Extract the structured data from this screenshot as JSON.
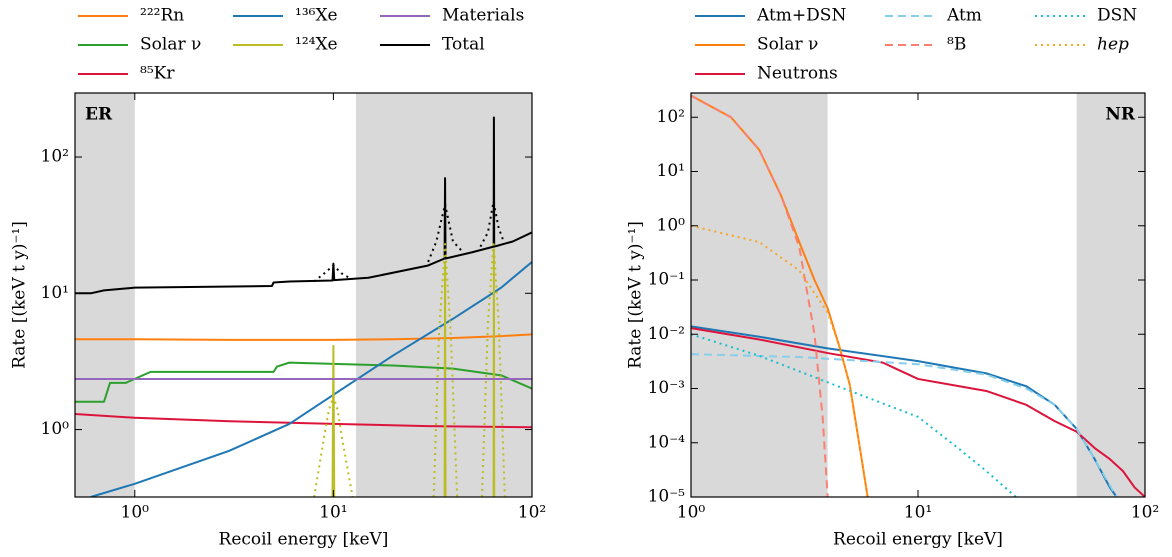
{
  "chart_data": [
    {
      "type": "line",
      "xscale": "log",
      "yscale": "log",
      "xlabel": "Recoil energy [keV]",
      "ylabel": "Rate [(keV t y)⁻¹]",
      "panel_label": "ER",
      "panel_label_corner": "upper left",
      "xlim": [
        0.5,
        100
      ],
      "ylim": [
        0.32,
        295
      ],
      "xticks": [
        {
          "value": 1,
          "label": "10⁰"
        },
        {
          "value": 10,
          "label": "10¹"
        },
        {
          "value": 100,
          "label": "10²"
        }
      ],
      "yticks": [
        {
          "value": 1,
          "label": "10⁰"
        },
        {
          "value": 10,
          "label": "10¹"
        },
        {
          "value": 100,
          "label": "10²"
        }
      ],
      "shaded_regions": [
        [
          0.5,
          1
        ],
        [
          13,
          100
        ]
      ],
      "shade_color": "#d9d9d9",
      "series": [
        {
          "name": "²²²Rn",
          "color": "#ff7f0e",
          "style": "solid",
          "x": [
            0.5,
            1,
            3,
            10,
            20,
            40,
            70,
            100
          ],
          "values": [
            4.6,
            4.6,
            4.55,
            4.55,
            4.6,
            4.7,
            4.85,
            5.0
          ]
        },
        {
          "name": "Solar ν",
          "color": "#2ca02c",
          "style": "solid",
          "x": [
            0.5,
            0.7,
            0.75,
            0.9,
            1.2,
            5,
            5.2,
            6,
            20,
            40,
            70,
            100
          ],
          "values": [
            1.6,
            1.6,
            2.2,
            2.2,
            2.65,
            2.65,
            2.9,
            3.1,
            2.95,
            2.8,
            2.5,
            2.0
          ]
        },
        {
          "name": "⁸⁵Kr",
          "color": "#dc143c",
          "style": "solid",
          "x": [
            0.5,
            1,
            3,
            10,
            30,
            100
          ],
          "values": [
            1.3,
            1.22,
            1.15,
            1.1,
            1.06,
            1.04
          ]
        },
        {
          "name": "¹³⁶Xe",
          "color": "#1f77b4",
          "style": "solid",
          "x": [
            0.6,
            1,
            3,
            6,
            10,
            20,
            40,
            70,
            100
          ],
          "values": [
            0.32,
            0.4,
            0.7,
            1.1,
            1.8,
            3.5,
            6.5,
            11,
            17
          ]
        },
        {
          "name": "¹²⁴Xe",
          "color": "#bcbd22",
          "style": "solid",
          "x": [
            9.9,
            10,
            10.1,
            20,
            36.3,
            36.5,
            36.7,
            50,
            64.1,
            64.3,
            64.5
          ],
          "values": [
            0.32,
            4.1,
            0.32,
            null,
            0.32,
            17,
            0.32,
            null,
            0.32,
            21,
            0.32
          ]
        },
        {
          "name": "Materials",
          "color": "#9467bd",
          "style": "solid",
          "x": [
            0.5,
            100
          ],
          "values": [
            2.35,
            2.35
          ]
        },
        {
          "name": "Total",
          "color": "#000000",
          "style": "solid",
          "x": [
            0.5,
            0.6,
            0.7,
            1,
            4.9,
            5,
            6,
            9.9,
            10,
            10.1,
            15,
            30,
            36.3,
            36.5,
            36.7,
            50,
            64.1,
            64.3,
            64.5,
            80,
            100
          ],
          "values": [
            10,
            10,
            10.5,
            11,
            11.3,
            12,
            12.2,
            12.4,
            16.5,
            12.5,
            13,
            16,
            18,
            70,
            18,
            20,
            22,
            195,
            22,
            24,
            28
          ]
        },
        {
          "color": "#bcbd22",
          "style": "dotted",
          "x": [
            8,
            9,
            9.5,
            10,
            10.5,
            11,
            12.5,
            20,
            32,
            34,
            36.5,
            39,
            42,
            50,
            56,
            60,
            64,
            68,
            73
          ],
          "values": [
            0.32,
            0.9,
            1.4,
            1.75,
            1.4,
            0.9,
            0.32,
            null,
            0.32,
            5,
            23,
            5,
            0.32,
            null,
            0.32,
            6,
            24,
            6,
            0.32
          ]
        },
        {
          "color": "#000000",
          "style": "dotted",
          "x": [
            8,
            9,
            10,
            11,
            12,
            20,
            30,
            33,
            36.5,
            40,
            45,
            50,
            55,
            60,
            64,
            68,
            72
          ],
          "values": [
            12.2,
            14,
            16,
            14,
            13,
            null,
            17,
            24,
            45,
            24,
            20,
            null,
            22,
            28,
            47,
            30,
            24
          ]
        }
      ]
    },
    {
      "type": "line",
      "xscale": "log",
      "yscale": "log",
      "xlabel": "Recoil energy [keV]",
      "ylabel": "Rate [(keV t y)⁻¹]",
      "panel_label": "NR",
      "panel_label_corner": "upper right",
      "xlim": [
        1,
        100
      ],
      "ylim": [
        1e-05,
        280
      ],
      "xticks": [
        {
          "value": 1,
          "label": "10⁰"
        },
        {
          "value": 10,
          "label": "10¹"
        },
        {
          "value": 100,
          "label": "10²"
        }
      ],
      "yticks": [
        {
          "value": 1e-05,
          "label": "10⁻⁵"
        },
        {
          "value": 0.0001,
          "label": "10⁻⁴"
        },
        {
          "value": 0.001,
          "label": "10⁻³"
        },
        {
          "value": 0.01,
          "label": "10⁻²"
        },
        {
          "value": 0.1,
          "label": "10⁻¹"
        },
        {
          "value": 1,
          "label": "10⁰"
        },
        {
          "value": 10,
          "label": "10¹"
        },
        {
          "value": 100,
          "label": "10²"
        }
      ],
      "shaded_regions": [
        [
          1,
          4
        ],
        [
          50,
          100
        ]
      ],
      "shade_color": "#d9d9d9",
      "series": [
        {
          "name": "Atm+DSN",
          "color": "#1f77b4",
          "style": "solid",
          "x": [
            1,
            2,
            4,
            10,
            20,
            30,
            40,
            50,
            60,
            70,
            75
          ],
          "values": [
            0.014,
            0.009,
            0.0055,
            0.0032,
            0.0019,
            0.0011,
            0.0005,
            0.00018,
            5e-05,
            1.5e-05,
            1e-05
          ]
        },
        {
          "name": "Solar ν",
          "color": "#ff7f0e",
          "style": "solid",
          "x": [
            1,
            1.5,
            2,
            2.5,
            3,
            3.5,
            4,
            4.5,
            5,
            5.5,
            6
          ],
          "values": [
            250,
            100,
            25,
            3.5,
            0.5,
            0.1,
            0.03,
            0.006,
            0.0012,
            0.0001,
            1e-05
          ]
        },
        {
          "name": "Neutrons",
          "color": "#dc143c",
          "style": "solid",
          "x": [
            1,
            2,
            4,
            7,
            10,
            20,
            30,
            40,
            50,
            60,
            70,
            80,
            90,
            100
          ],
          "values": [
            0.013,
            0.008,
            0.0045,
            0.003,
            0.0015,
            0.0009,
            0.0005,
            0.00025,
            0.00016,
            8e-05,
            5e-05,
            3e-05,
            1.5e-05,
            1e-05
          ]
        },
        {
          "name": "Atm",
          "color": "#87ceeb",
          "style": "dashed",
          "x": [
            1,
            3,
            10,
            20,
            30,
            40,
            50,
            60,
            75
          ],
          "values": [
            0.0043,
            0.0038,
            0.0028,
            0.0018,
            0.001,
            0.0005,
            0.00018,
            5e-05,
            1e-05
          ]
        },
        {
          "name": "⁸B",
          "color": "#fa8072",
          "style": "dashed",
          "x": [
            1,
            1.5,
            2,
            2.5,
            3,
            3.5,
            3.8,
            4
          ],
          "values": [
            250,
            100,
            25,
            3.5,
            0.4,
            0.01,
            0.0003,
            1e-05
          ]
        },
        {
          "name": "DSN",
          "color": "#17becf",
          "style": "dotted",
          "x": [
            1,
            2,
            4,
            10,
            15,
            20,
            27
          ],
          "values": [
            0.01,
            0.004,
            0.0013,
            0.0003,
            8e-05,
            3e-05,
            1e-05
          ]
        },
        {
          "name": "hep",
          "color": "#f5a623",
          "style": "dotted",
          "label_style": "italic",
          "x": [
            1,
            2,
            3,
            4,
            4.5,
            5,
            5.5,
            6
          ],
          "values": [
            1.0,
            0.5,
            0.15,
            0.025,
            0.006,
            0.0012,
            0.0001,
            1e-05
          ]
        }
      ]
    }
  ]
}
